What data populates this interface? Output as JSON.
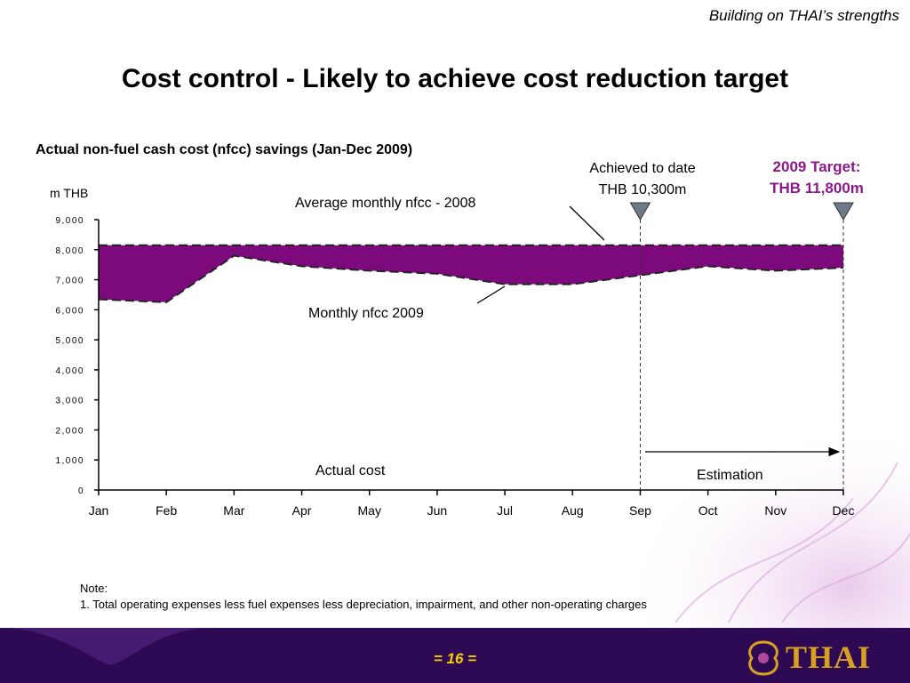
{
  "header": {
    "tagline": "Building on THAI’s strengths",
    "title": "Cost control - Likely to achieve cost reduction target"
  },
  "chart_data": {
    "type": "area",
    "title": "Actual non-fuel cash cost (nfcc) savings (Jan-Dec 2009)",
    "ylabel": "m THB",
    "xlabel": "",
    "categories": [
      "Jan",
      "Feb",
      "Mar",
      "Apr",
      "May",
      "Jun",
      "Jul",
      "Aug",
      "Sep",
      "Oct",
      "Nov",
      "Dec"
    ],
    "ylim": [
      0,
      9000
    ],
    "yticks": [
      0,
      1000,
      2000,
      3000,
      4000,
      5000,
      6000,
      7000,
      8000,
      9000
    ],
    "ytick_labels": [
      "0",
      "1,000",
      "2,000",
      "3,000",
      "4,000",
      "5,000",
      "6,000",
      "7,000",
      "8,000",
      "9,000"
    ],
    "series": [
      {
        "name": "Average monthly nfcc  - 2008",
        "values": [
          8150,
          8150,
          8150,
          8150,
          8150,
          8150,
          8150,
          8150,
          8150,
          8150,
          8150,
          8150
        ]
      },
      {
        "name": "Monthly nfcc 2009",
        "values": [
          6350,
          6250,
          7800,
          7450,
          7300,
          7200,
          6850,
          6850,
          7150,
          7450,
          7300,
          7400
        ]
      }
    ],
    "fill_color": "#7d0a7d",
    "annotations": {
      "average_label": "Average monthly nfcc  - 2008",
      "monthly_label": "Monthly nfcc 2009",
      "actual_label": "Actual cost",
      "estimation_label": "Estimation",
      "achieved_line1": "Achieved to date",
      "achieved_line2": "THB 10,300m",
      "target_line1": "2009 Target:",
      "target_line2": "THB 11,800m"
    },
    "grid": false
  },
  "note": {
    "heading": "Note:",
    "line1": "1. Total operating expenses less fuel expenses less depreciation, impairment, and other non-operating charges"
  },
  "footer": {
    "page": "= 16 =",
    "logo": "THAI"
  }
}
